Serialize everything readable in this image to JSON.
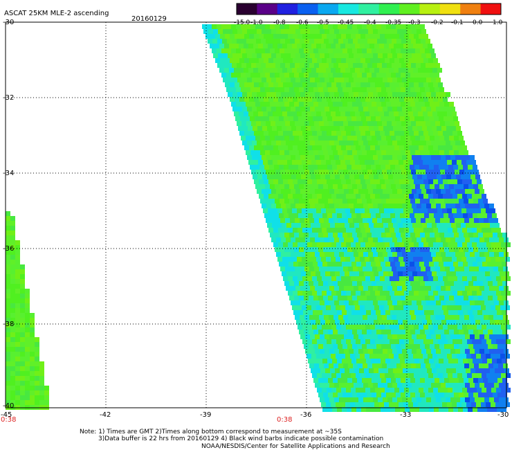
{
  "header": {
    "title": "ASCAT 25KM MLE-2 ascending",
    "date": "20160129"
  },
  "colorbar": {
    "labels": [
      "-15.0",
      "-1.0",
      "-0.8",
      "-0.6",
      "-0.5",
      "-0.45",
      "-0.4",
      "-0.35",
      "-0.3",
      "-0.2",
      "-0.1",
      "0.0",
      "1.0"
    ],
    "colors": [
      "#2a0030",
      "#5a0088",
      "#2020e0",
      "#0a60f0",
      "#0aa8f0",
      "#18e8e0",
      "#30f0a0",
      "#30f050",
      "#60f020",
      "#b8f010",
      "#f0e010",
      "#f08010",
      "#f01010"
    ]
  },
  "axes": {
    "y_labels": [
      "-30",
      "-32",
      "-34",
      "-36",
      "-38",
      "-40"
    ],
    "x_labels": [
      "-45",
      "-42",
      "-39",
      "-36",
      "-33",
      "-30"
    ]
  },
  "time_labels": [
    "0:38",
    "0:38"
  ],
  "notes": [
    "Note: 1) Times are GMT 2)Times along bottom correspond to measurement at ~35S",
    "3)Data buffer is 22 hrs from 20160129 4) Black wind barbs indicate possible contamination",
    "NOAA/NESDIS/Center for Satellite Applications and Research"
  ]
}
